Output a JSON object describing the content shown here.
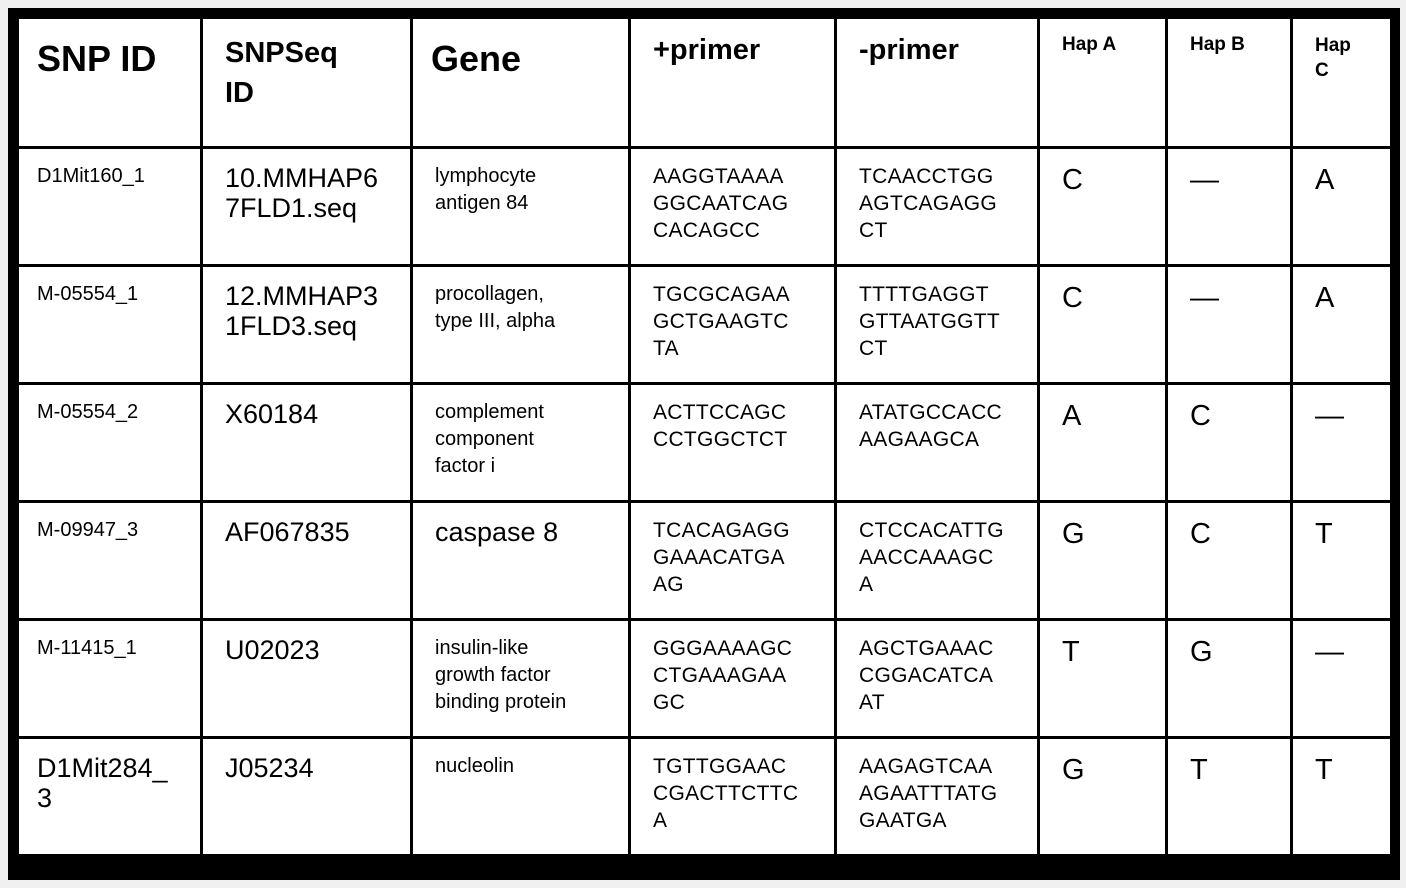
{
  "headers": {
    "snp_id": "SNP ID",
    "snpseq_id": "SNPSeq\nID",
    "gene": "Gene",
    "plus_primer": "+primer",
    "minus_primer": "-primer",
    "hap_a": "Hap A",
    "hap_b": "Hap B",
    "hap_c": "Hap\nC"
  },
  "rows": [
    {
      "snp_id": "D1Mit160_1",
      "snpseq_id": "10.MMHAP6\n7FLD1.seq",
      "gene": "lymphocyte\nantigen 84",
      "plus_primer": "AAGGTAAAA\nGGCAATCAG\nCACAGCC",
      "minus_primer": "TCAACCTGG\nAGTCAGAGG\nCT",
      "hap_a": "C",
      "hap_b": "—",
      "hap_c": "A"
    },
    {
      "snp_id": "M-05554_1",
      "snpseq_id": "12.MMHAP3\n1FLD3.seq",
      "gene": "procollagen,\ntype III, alpha",
      "plus_primer": "TGCGCAGAA\nGCTGAAGTC\nTA",
      "minus_primer": "TTTTGAGGT\nGTTAATGGTT\nCT",
      "hap_a": "C",
      "hap_b": "—",
      "hap_c": "A"
    },
    {
      "snp_id": "M-05554_2",
      "snpseq_id": "X60184",
      "gene": "complement\ncomponent\nfactor i",
      "plus_primer": "ACTTCCAGC\nCCTGGCTCT",
      "minus_primer": "ATATGCCACC\nAAGAAGCA",
      "hap_a": "A",
      "hap_b": "C",
      "hap_c": "—"
    },
    {
      "snp_id": "M-09947_3",
      "snpseq_id": "AF067835",
      "gene": "caspase 8",
      "plus_primer": "TCACAGAGG\nGAAACATGA\nAG",
      "minus_primer": "CTCCACATTG\nAACCAAAGC\nA",
      "hap_a": "G",
      "hap_b": "C",
      "hap_c": "T"
    },
    {
      "snp_id": "M-11415_1",
      "snpseq_id": "U02023",
      "gene": "insulin-like\ngrowth factor\nbinding protein",
      "plus_primer": "GGGAAAAGC\nCTGAAAGAA\nGC",
      "minus_primer": "AGCTGAAAC\nCGGACATCA\nAT",
      "hap_a": "T",
      "hap_b": "G",
      "hap_c": "—"
    },
    {
      "snp_id": "D1Mit284_\n3",
      "snpseq_id": "J05234",
      "gene": "nucleolin",
      "plus_primer": "TGTTGGAAC\nCGACTTCTTC\nA",
      "minus_primer": "AAGAGTCAA\nAGAATTTATG\nGAATGA",
      "hap_a": "G",
      "hap_b": "T",
      "hap_c": "T"
    }
  ]
}
